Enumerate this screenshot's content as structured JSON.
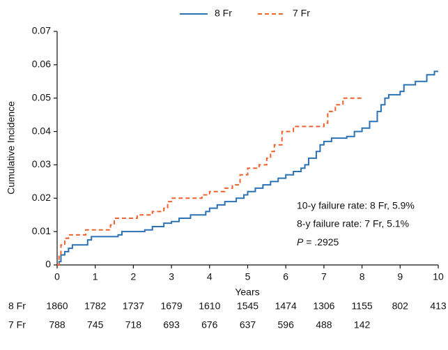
{
  "chart_data": {
    "type": "line",
    "step": "after",
    "xlabel": "Years",
    "ylabel": "Cumulative Incidence",
    "xlim": [
      0,
      10
    ],
    "xticks": [
      0,
      1,
      2,
      3,
      4,
      5,
      6,
      7,
      8,
      9,
      10
    ],
    "ylim": [
      0,
      0.07
    ],
    "yticks": [
      0,
      0.01,
      0.02,
      0.03,
      0.04,
      0.05,
      0.06,
      0.07
    ],
    "series": [
      {
        "name": "8 Fr",
        "color": "#2b72b5",
        "dash": false,
        "x": [
          0,
          0.05,
          0.1,
          0.2,
          0.3,
          0.4,
          0.8,
          0.9,
          1.6,
          1.7,
          2.3,
          2.5,
          2.8,
          3.0,
          3.2,
          3.5,
          3.9,
          4.0,
          4.2,
          4.4,
          4.7,
          4.9,
          5.0,
          5.2,
          5.4,
          5.6,
          5.8,
          6.0,
          6.2,
          6.4,
          6.5,
          6.6,
          6.8,
          6.9,
          7.0,
          7.2,
          7.6,
          7.8,
          8.0,
          8.2,
          8.4,
          8.5,
          8.6,
          8.7,
          9.0,
          9.1,
          9.4,
          9.7,
          9.9,
          10
        ],
        "values": [
          0,
          0.001,
          0.003,
          0.004,
          0.005,
          0.006,
          0.0075,
          0.0085,
          0.009,
          0.01,
          0.0105,
          0.0115,
          0.0125,
          0.013,
          0.014,
          0.015,
          0.016,
          0.017,
          0.018,
          0.019,
          0.02,
          0.021,
          0.022,
          0.023,
          0.024,
          0.025,
          0.026,
          0.027,
          0.028,
          0.029,
          0.03,
          0.032,
          0.034,
          0.036,
          0.037,
          0.038,
          0.0385,
          0.04,
          0.041,
          0.043,
          0.046,
          0.048,
          0.05,
          0.051,
          0.052,
          0.054,
          0.055,
          0.057,
          0.058,
          0.058
        ]
      },
      {
        "name": "7 Fr",
        "color": "#f0622d",
        "dash": true,
        "x": [
          0,
          0.05,
          0.1,
          0.2,
          0.3,
          0.75,
          1.4,
          1.5,
          2.1,
          2.5,
          2.8,
          2.9,
          3.0,
          3.8,
          4.0,
          4.4,
          4.6,
          4.8,
          5.0,
          5.3,
          5.5,
          5.6,
          5.7,
          5.9,
          6.2,
          7.0,
          7.1,
          7.3,
          7.5,
          8.0
        ],
        "values": [
          0,
          0.003,
          0.006,
          0.008,
          0.009,
          0.0105,
          0.012,
          0.014,
          0.015,
          0.016,
          0.017,
          0.019,
          0.02,
          0.021,
          0.022,
          0.023,
          0.024,
          0.027,
          0.029,
          0.03,
          0.032,
          0.034,
          0.036,
          0.04,
          0.0415,
          0.0425,
          0.046,
          0.048,
          0.05,
          0.05
        ]
      }
    ],
    "annotations": [
      "10-y failure rate: 8 Fr, 5.9%",
      "8-y failure rate: 7 Fr, 5.1%"
    ],
    "p_value": {
      "symbol": "P",
      "text": " = .2925"
    },
    "at_risk": [
      {
        "name": "8 Fr",
        "values": [
          1860,
          1782,
          1737,
          1679,
          1610,
          1545,
          1474,
          1306,
          1155,
          802,
          413
        ]
      },
      {
        "name": "7 Fr",
        "values": [
          788,
          745,
          718,
          693,
          676,
          637,
          596,
          488,
          142
        ]
      }
    ]
  }
}
